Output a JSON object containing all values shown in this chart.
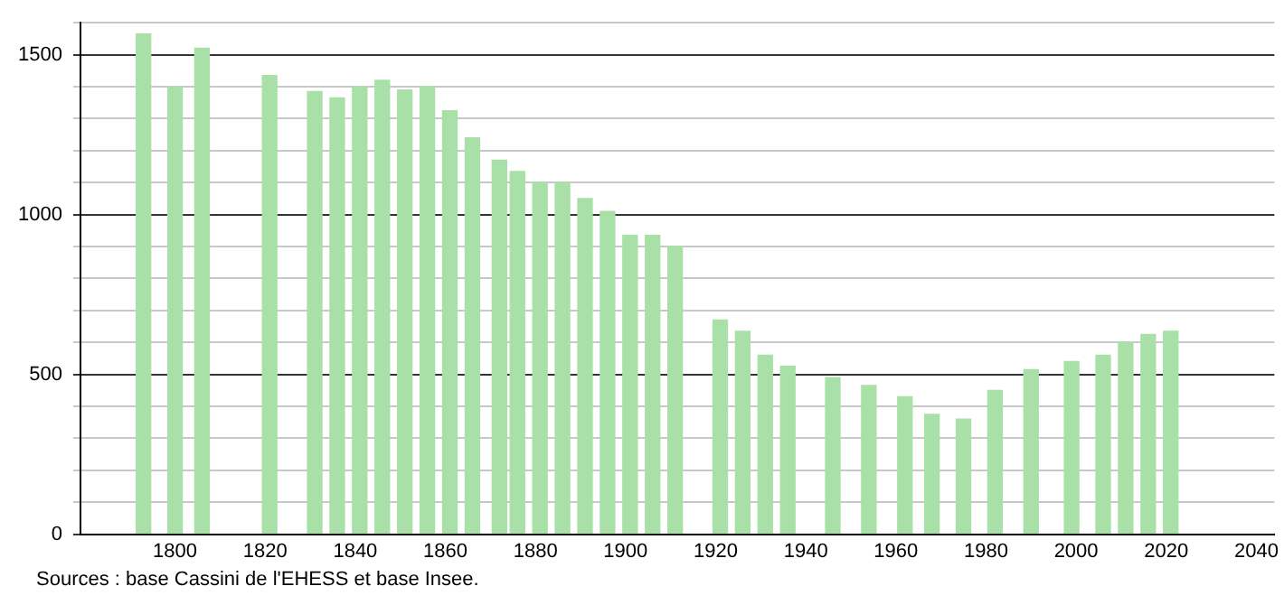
{
  "chart_data": {
    "type": "bar",
    "color": "#a8e0a8",
    "x": [
      1793,
      1800,
      1806,
      1821,
      1831,
      1836,
      1841,
      1846,
      1851,
      1856,
      1861,
      1866,
      1872,
      1876,
      1881,
      1886,
      1891,
      1896,
      1901,
      1906,
      1911,
      1921,
      1926,
      1931,
      1936,
      1946,
      1954,
      1962,
      1968,
      1975,
      1982,
      1990,
      1999,
      2006,
      2011,
      2016,
      2021
    ],
    "values": [
      1565,
      1400,
      1520,
      1435,
      1385,
      1365,
      1400,
      1420,
      1390,
      1400,
      1325,
      1240,
      1170,
      1135,
      1100,
      1100,
      1050,
      1010,
      935,
      935,
      900,
      670,
      635,
      560,
      525,
      490,
      465,
      430,
      375,
      360,
      450,
      515,
      540,
      560,
      600,
      625,
      635
    ],
    "xlim": [
      1779,
      2044
    ],
    "xticks": [
      1800,
      1820,
      1840,
      1860,
      1880,
      1900,
      1920,
      1940,
      1960,
      1980,
      2000,
      2020,
      2040
    ],
    "ylim": [
      0,
      1600
    ],
    "yticks": [
      0,
      {
        "value": 100,
        "label": null
      },
      {
        "value": 200,
        "label": null
      },
      {
        "value": 300,
        "label": null
      },
      {
        "value": 400,
        "label": null
      },
      500,
      {
        "value": 600,
        "label": null
      },
      {
        "value": 700,
        "label": null
      },
      {
        "value": 800,
        "label": null
      },
      {
        "value": 900,
        "label": null
      },
      1000,
      {
        "value": 1100,
        "label": null
      },
      {
        "value": 1200,
        "label": null
      },
      {
        "value": 1300,
        "label": null
      },
      {
        "value": 1400,
        "label": null
      },
      1500,
      {
        "value": 1600,
        "label": null
      }
    ],
    "grid": "y",
    "legend": false,
    "annotations": [
      "Sources : base Cassini de l'EHESS et base Insee."
    ]
  }
}
